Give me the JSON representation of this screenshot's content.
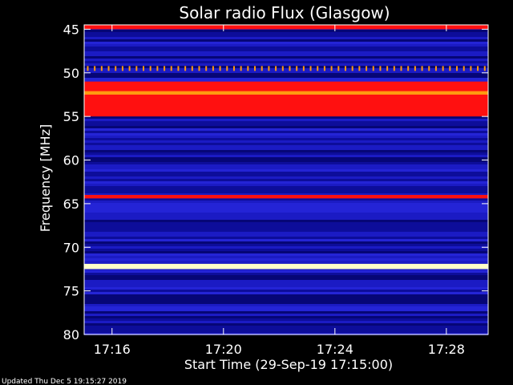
{
  "chart_data": {
    "type": "heatmap",
    "title": "Solar radio Flux (Glasgow)",
    "xlabel": "Start Time (29-Sep-19 17:15:00)",
    "ylabel": "Frequency [MHz]",
    "ylim": [
      80,
      44.5
    ],
    "xlim_minutes": [
      0,
      14.5
    ],
    "x_ticks": [
      "17:16",
      "17:20",
      "17:24",
      "17:28"
    ],
    "x_tick_minutes": [
      1,
      5,
      9,
      13
    ],
    "y_ticks": [
      "45",
      "50",
      "55",
      "60",
      "65",
      "70",
      "75",
      "80"
    ],
    "y_tick_values": [
      45,
      50,
      55,
      60,
      65,
      70,
      75,
      80
    ],
    "background_color": "#1a1ab8",
    "colormap": [
      "#000000",
      "#0000ff",
      "#ff0000",
      "#ffff00",
      "#ffffff"
    ],
    "features": [
      {
        "freq_start": 44.5,
        "freq_end": 45.0,
        "level": "high"
      },
      {
        "freq_start": 51.0,
        "freq_end": 55.0,
        "level": "high"
      },
      {
        "freq_start": 52.1,
        "freq_end": 52.5,
        "level": "very-high"
      },
      {
        "freq_start": 64.0,
        "freq_end": 64.4,
        "level": "high"
      },
      {
        "freq_start": 71.9,
        "freq_end": 72.5,
        "level": "max"
      }
    ],
    "periodic_spikes": {
      "freq": 49.5,
      "interval_min": 0.25,
      "level": "very-high"
    }
  },
  "footer": {
    "updated": "Updated Thu Dec  5 19:15:27 2019"
  }
}
